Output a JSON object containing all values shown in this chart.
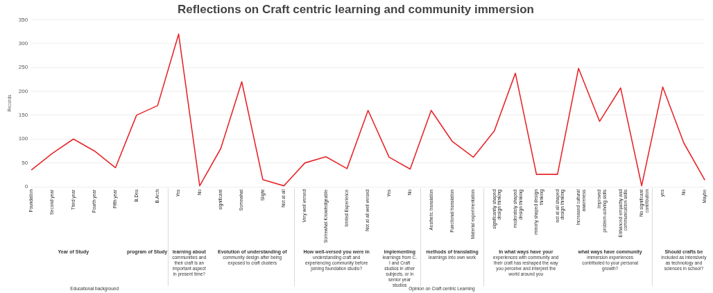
{
  "chart_data": {
    "type": "line",
    "title": "Reflections on Craft centric learning and community immersion",
    "ylabel": "Records",
    "categories": [
      "Foundation",
      "Second year",
      "Third year",
      "Fourth year",
      "Fifth year",
      "B.Des",
      "B.Arch",
      "Yes",
      "No",
      "significant",
      "Somewhat",
      "Slight",
      "Not at all",
      "Very well versed",
      "Somewhat Knowledgeable",
      "limited Experience",
      "Not at all well versed",
      "Yes",
      "No",
      "Aesthetic translation",
      "Functional translation",
      "Material experimentation",
      "significantly shaped design thinking",
      "moderately shaped design thinking",
      "minorly shaped design thinking",
      "not at all shaped design thinking",
      "Increased cultural awareness",
      "Improved problem-solving skills",
      "Enhanced empathy and communication skills",
      "No significant contribution",
      "yes",
      "No",
      "Maybe"
    ],
    "series": [
      {
        "color": "#e8262a",
        "values": [
          35,
          70,
          100,
          75,
          40,
          150,
          170,
          320,
          2,
          80,
          220,
          15,
          2,
          50,
          63,
          38,
          160,
          62,
          37,
          160,
          95,
          62,
          117,
          238,
          26,
          26,
          248,
          137,
          207,
          2,
          209,
          92,
          14
        ]
      }
    ],
    "ylim": [
      0,
      350
    ],
    "yticks": [
      0,
      50,
      100,
      150,
      200,
      250,
      300,
      350
    ],
    "grid": "y",
    "legend": false,
    "marker": "none",
    "line_style": "solid",
    "annotations": [
      "Year of Study",
      "program of Study",
      "learning about communities and their craft is an important aspect in present time?",
      "Evolution of understanding of community design after being exposed to craft clusters",
      "How well-versed you were in understanding craft and experiencing community before joining foundation studio?",
      "implementing learnings from C. I and Craft studios in other subjects, or in senior year studios",
      "methods of translating learnings into own work",
      "In what ways have your experiences with community and their craft has reshaped the way you perceive and interpret the world around you",
      "what ways have community immersion experiences contributed to your personal growth?",
      "Should crafts be included as intensively as technology and sciences in school?",
      "Educational background",
      "Opinion on Craft centric Learning"
    ]
  }
}
